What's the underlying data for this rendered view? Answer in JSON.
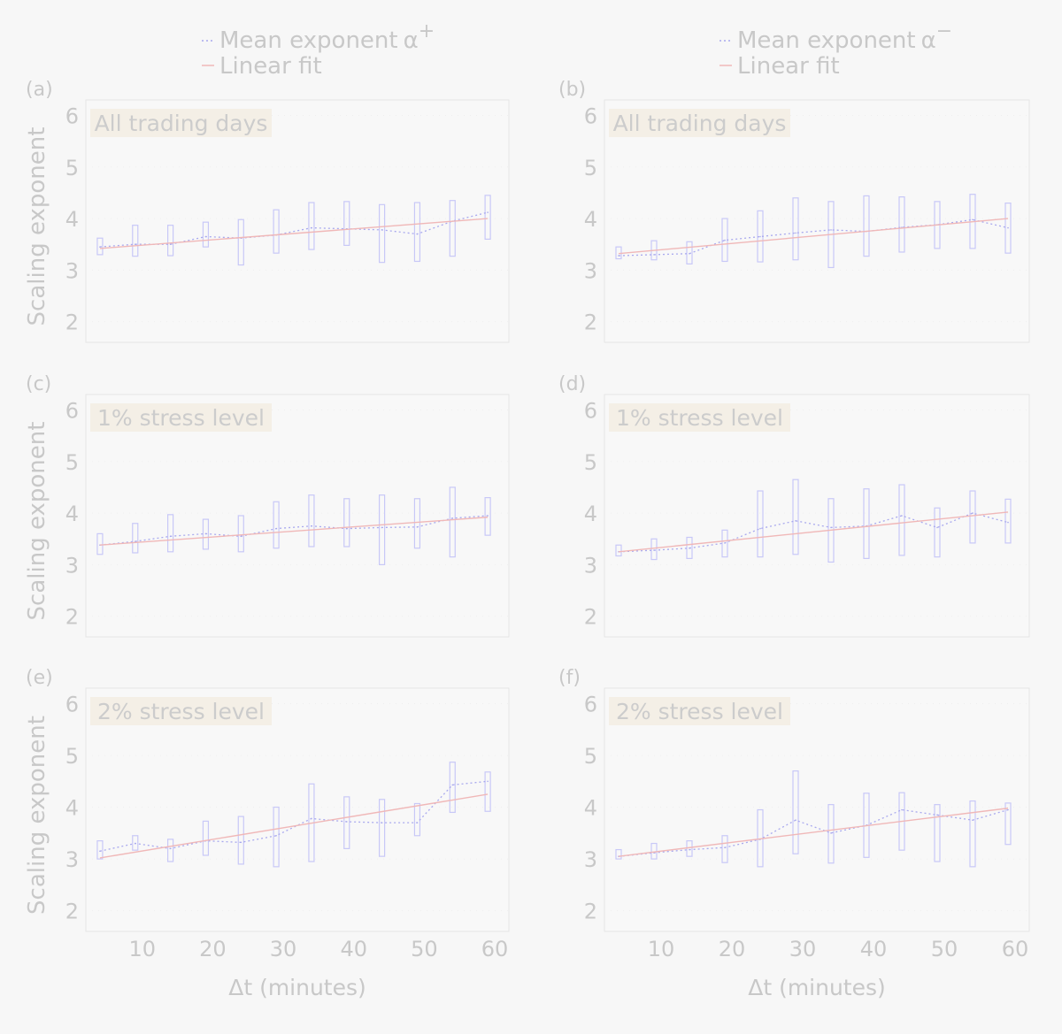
{
  "colors": {
    "box": "#c8c8f7",
    "mean": "#a9a9ee",
    "fit": "#f0b8b8",
    "text": "#c8c8c8",
    "title_bg": "#f4efe6",
    "plot_bg": "#f8f8f8",
    "frame": "#e6e6e6"
  },
  "legend": {
    "left": {
      "mean_label": "Mean exponent",
      "symbol": "α",
      "sign": "+",
      "fit_label": "Linear fit"
    },
    "right": {
      "mean_label": "Mean exponent",
      "symbol": "α",
      "sign": "−",
      "fit_label": "Linear fit"
    }
  },
  "axes": {
    "ylabel": "Scaling exponent",
    "xlabel": "Δt (minutes)",
    "xticks": [
      10,
      20,
      30,
      40,
      50,
      60
    ],
    "yticks": [
      2,
      3,
      4,
      5,
      6
    ],
    "xlim": [
      2,
      62
    ],
    "ylim": [
      1.6,
      6.3
    ]
  },
  "chart_data": [
    {
      "type": "box",
      "panel": "(a)",
      "title": "All trading days",
      "x": [
        4,
        9,
        14,
        19,
        24,
        29,
        34,
        39,
        44,
        49,
        54,
        59
      ],
      "box_low": [
        3.3,
        3.27,
        3.28,
        3.45,
        3.1,
        3.33,
        3.4,
        3.48,
        3.15,
        3.17,
        3.27,
        3.6
      ],
      "box_high": [
        3.62,
        3.87,
        3.87,
        3.93,
        3.98,
        4.17,
        4.31,
        4.33,
        4.27,
        4.31,
        4.35,
        4.45
      ],
      "mean": [
        3.45,
        3.5,
        3.5,
        3.65,
        3.62,
        3.68,
        3.82,
        3.8,
        3.78,
        3.7,
        3.95,
        4.12
      ],
      "fit": {
        "x": [
          4,
          59
        ],
        "y": [
          3.42,
          4.0
        ]
      }
    },
    {
      "type": "box",
      "panel": "(b)",
      "title": "All trading days",
      "x": [
        4,
        9,
        14,
        19,
        24,
        29,
        34,
        39,
        44,
        49,
        54,
        59
      ],
      "box_low": [
        3.22,
        3.2,
        3.12,
        3.17,
        3.16,
        3.2,
        3.05,
        3.27,
        3.35,
        3.42,
        3.42,
        3.33
      ],
      "box_high": [
        3.45,
        3.57,
        3.55,
        4.0,
        4.15,
        4.4,
        4.33,
        4.44,
        4.42,
        4.33,
        4.47,
        4.3
      ],
      "mean": [
        3.28,
        3.3,
        3.32,
        3.58,
        3.65,
        3.72,
        3.78,
        3.75,
        3.83,
        3.88,
        3.98,
        3.82
      ],
      "fit": {
        "x": [
          4,
          59
        ],
        "y": [
          3.32,
          4.0
        ]
      }
    },
    {
      "type": "box",
      "panel": "(c)",
      "title": "1% stress level",
      "x": [
        4,
        9,
        14,
        19,
        24,
        29,
        34,
        39,
        44,
        49,
        54,
        59
      ],
      "box_low": [
        3.2,
        3.23,
        3.25,
        3.3,
        3.25,
        3.32,
        3.35,
        3.35,
        3.0,
        3.32,
        3.15,
        3.57
      ],
      "box_high": [
        3.6,
        3.8,
        3.97,
        3.88,
        3.95,
        4.22,
        4.35,
        4.28,
        4.35,
        4.28,
        4.5,
        4.3
      ],
      "mean": [
        3.38,
        3.45,
        3.55,
        3.6,
        3.55,
        3.7,
        3.75,
        3.7,
        3.72,
        3.73,
        3.9,
        3.95
      ],
      "fit": {
        "x": [
          4,
          59
        ],
        "y": [
          3.38,
          3.92
        ]
      }
    },
    {
      "type": "box",
      "panel": "(d)",
      "title": "1% stress level",
      "x": [
        4,
        9,
        14,
        19,
        24,
        29,
        34,
        39,
        44,
        49,
        54,
        59
      ],
      "box_low": [
        3.17,
        3.1,
        3.12,
        3.15,
        3.15,
        3.2,
        3.05,
        3.12,
        3.18,
        3.15,
        3.42,
        3.42
      ],
      "box_high": [
        3.38,
        3.5,
        3.53,
        3.67,
        4.43,
        4.65,
        4.28,
        4.47,
        4.55,
        4.1,
        4.43,
        4.27
      ],
      "mean": [
        3.25,
        3.28,
        3.32,
        3.42,
        3.7,
        3.85,
        3.72,
        3.75,
        3.95,
        3.72,
        4.0,
        3.82
      ],
      "fit": {
        "x": [
          4,
          59
        ],
        "y": [
          3.25,
          4.02
        ]
      }
    },
    {
      "type": "box",
      "panel": "(e)",
      "title": "2% stress level",
      "x": [
        4,
        9,
        14,
        19,
        24,
        29,
        34,
        39,
        44,
        49,
        54,
        59
      ],
      "box_low": [
        3.0,
        3.17,
        2.95,
        3.07,
        2.9,
        2.85,
        2.95,
        3.2,
        3.05,
        3.45,
        3.9,
        3.92
      ],
      "box_high": [
        3.35,
        3.45,
        3.38,
        3.73,
        3.82,
        4.0,
        4.45,
        4.2,
        4.15,
        4.07,
        4.87,
        4.68
      ],
      "mean": [
        3.15,
        3.3,
        3.2,
        3.35,
        3.32,
        3.45,
        3.78,
        3.72,
        3.7,
        3.7,
        4.43,
        4.5
      ],
      "fit": {
        "x": [
          4,
          59
        ],
        "y": [
          3.02,
          4.25
        ]
      }
    },
    {
      "type": "box",
      "panel": "(f)",
      "title": "2% stress level",
      "x": [
        4,
        9,
        14,
        19,
        24,
        29,
        34,
        39,
        44,
        49,
        54,
        59
      ],
      "box_low": [
        3.0,
        3.0,
        3.05,
        2.93,
        2.85,
        3.1,
        2.92,
        3.03,
        3.17,
        2.95,
        2.85,
        3.28
      ],
      "box_high": [
        3.18,
        3.3,
        3.35,
        3.45,
        3.95,
        4.7,
        4.05,
        4.27,
        4.28,
        4.05,
        4.12,
        4.08
      ],
      "mean": [
        3.05,
        3.12,
        3.18,
        3.22,
        3.38,
        3.75,
        3.5,
        3.65,
        3.95,
        3.85,
        3.75,
        3.95
      ],
      "fit": {
        "x": [
          4,
          59
        ],
        "y": [
          3.05,
          3.98
        ]
      }
    }
  ]
}
